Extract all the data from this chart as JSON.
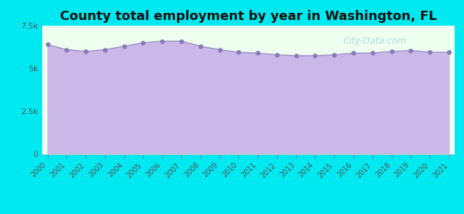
{
  "title": "County total employment by year in Washington, FL",
  "years": [
    2000,
    2001,
    2002,
    2003,
    2004,
    2005,
    2006,
    2007,
    2008,
    2009,
    2010,
    2011,
    2012,
    2013,
    2014,
    2015,
    2016,
    2017,
    2018,
    2019,
    2020,
    2021
  ],
  "values": [
    6400,
    6100,
    6000,
    6100,
    6300,
    6500,
    6600,
    6600,
    6300,
    6100,
    5950,
    5900,
    5800,
    5750,
    5750,
    5800,
    5900,
    5900,
    6000,
    6050,
    5950,
    5950
  ],
  "ylim": [
    0,
    7500
  ],
  "yticks": [
    0,
    2500,
    5000,
    7500
  ],
  "ytick_labels": [
    "0",
    "2.5k",
    "5k",
    "7.5k"
  ],
  "fill_color": "#c9b8e8",
  "line_color": "#9b8ec4",
  "dot_color": "#8b7ab8",
  "bg_color_outer": "#00e8f0",
  "bg_color_plot": "#efffef",
  "title_fontsize": 13,
  "watermark": "City-Data.com"
}
